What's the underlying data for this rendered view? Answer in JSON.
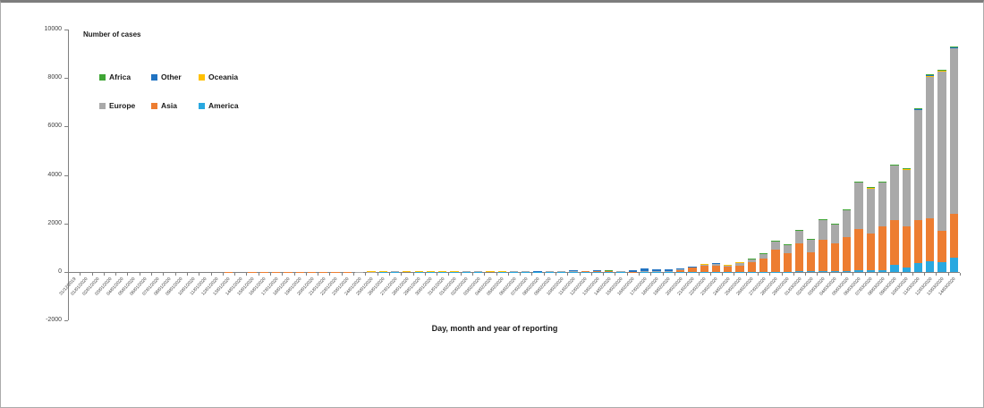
{
  "titles": {
    "y_axis_title": "Number of cases",
    "x_axis_title": "Day, month and year of reporting"
  },
  "legend": {
    "rows": [
      [
        {
          "label": "Africa",
          "color": "#3FA535"
        },
        {
          "label": "Other",
          "color": "#2173C2"
        },
        {
          "label": "Oceania",
          "color": "#FFC000"
        }
      ],
      [
        {
          "label": "Europe",
          "color": "#A9A9A9"
        },
        {
          "label": "Asia",
          "color": "#ED7D31"
        },
        {
          "label": "America",
          "color": "#29A8E0"
        }
      ]
    ]
  },
  "chart_data": {
    "type": "bar",
    "stacked": true,
    "stack_order": "bottom_to_top",
    "title": "Number of cases",
    "xlabel": "Day, month and year of reporting",
    "ylabel": "Number of cases",
    "ylim": [
      -2000,
      10000
    ],
    "y_ticks": [
      10000,
      8000,
      6000,
      4000,
      2000,
      0,
      -2000
    ],
    "grid": false,
    "legend_position": "top-left-inside",
    "categories": [
      "31/12/2019",
      "01/01/2020",
      "02/01/2020",
      "03/01/2020",
      "04/01/2020",
      "05/01/2020",
      "06/01/2020",
      "07/01/2020",
      "08/01/2020",
      "09/01/2020",
      "10/01/2020",
      "11/01/2020",
      "12/01/2020",
      "13/01/2020",
      "14/01/2020",
      "15/01/2020",
      "16/01/2020",
      "17/01/2020",
      "18/01/2020",
      "19/01/2020",
      "20/01/2020",
      "21/01/2020",
      "22/01/2020",
      "23/01/2020",
      "24/01/2020",
      "25/01/2020",
      "26/01/2020",
      "27/01/2020",
      "28/01/2020",
      "29/01/2020",
      "30/01/2020",
      "31/01/2020",
      "01/02/2020",
      "02/02/2020",
      "03/02/2020",
      "04/02/2020",
      "05/02/2020",
      "06/02/2020",
      "07/02/2020",
      "08/02/2020",
      "09/02/2020",
      "10/02/2020",
      "11/02/2020",
      "12/02/2020",
      "13/02/2020",
      "14/02/2020",
      "15/02/2020",
      "16/02/2020",
      "17/02/2020",
      "18/02/2020",
      "19/02/2020",
      "20/02/2020",
      "21/02/2020",
      "22/02/2020",
      "23/02/2020",
      "24/02/2020",
      "25/02/2020",
      "26/02/2020",
      "27/02/2020",
      "28/02/2020",
      "29/02/2020",
      "01/03/2020",
      "02/03/2020",
      "03/03/2020",
      "04/03/2020",
      "05/03/2020",
      "06/03/2020",
      "07/03/2020",
      "08/03/2020",
      "09/03/2020",
      "10/03/2020",
      "11/03/2020",
      "12/03/2020",
      "13/03/2020",
      "14/03/2020"
    ],
    "series": [
      {
        "name": "America",
        "color": "#29A8E0",
        "values": [
          0,
          0,
          0,
          0,
          0,
          0,
          0,
          0,
          0,
          0,
          0,
          0,
          0,
          0,
          0,
          0,
          0,
          0,
          0,
          0,
          1,
          1,
          0,
          1,
          0,
          0,
          4,
          2,
          0,
          2,
          2,
          2,
          2,
          3,
          1,
          0,
          2,
          2,
          3,
          1,
          1,
          2,
          1,
          2,
          2,
          1,
          2,
          2,
          1,
          1,
          2,
          4,
          5,
          5,
          5,
          8,
          8,
          12,
          14,
          15,
          15,
          28,
          20,
          30,
          35,
          48,
          62,
          75,
          82,
          300,
          185,
          370,
          450,
          410,
          600
        ]
      },
      {
        "name": "Asia",
        "color": "#ED7D31",
        "values": [
          0,
          0,
          0,
          0,
          0,
          0,
          0,
          0,
          0,
          0,
          0,
          0,
          0,
          1,
          0,
          1,
          1,
          3,
          2,
          3,
          5,
          7,
          12,
          11,
          12,
          15,
          20,
          20,
          25,
          30,
          33,
          40,
          38,
          42,
          28,
          36,
          42,
          38,
          42,
          36,
          34,
          38,
          35,
          40,
          48,
          55,
          45,
          8,
          38,
          35,
          42,
          108,
          200,
          255,
          270,
          200,
          250,
          400,
          530,
          900,
          750,
          1150,
          800,
          1300,
          1150,
          1400,
          1720,
          1520,
          1810,
          1830,
          1700,
          1760,
          1750,
          1300,
          1790
        ]
      },
      {
        "name": "Europe",
        "color": "#A9A9A9",
        "values": [
          0,
          0,
          0,
          0,
          0,
          0,
          0,
          0,
          0,
          0,
          0,
          0,
          0,
          0,
          0,
          0,
          0,
          0,
          0,
          0,
          0,
          0,
          0,
          0,
          3,
          3,
          0,
          3,
          5,
          4,
          5,
          7,
          6,
          5,
          3,
          4,
          5,
          5,
          7,
          6,
          5,
          5,
          2,
          0,
          0,
          2,
          5,
          0,
          2,
          1,
          2,
          8,
          24,
          70,
          70,
          100,
          140,
          152,
          230,
          380,
          375,
          555,
          535,
          830,
          815,
          1120,
          1940,
          1880,
          1810,
          2290,
          2350,
          4560,
          5850,
          6550,
          6820
        ]
      },
      {
        "name": "Oceania",
        "color": "#FFC000",
        "values": [
          0,
          0,
          0,
          0,
          0,
          0,
          0,
          0,
          0,
          0,
          0,
          0,
          0,
          0,
          0,
          0,
          0,
          0,
          0,
          0,
          0,
          0,
          0,
          0,
          0,
          4,
          4,
          0,
          2,
          2,
          2,
          3,
          2,
          0,
          0,
          2,
          1,
          0,
          0,
          0,
          0,
          0,
          0,
          0,
          0,
          0,
          0,
          0,
          0,
          0,
          0,
          0,
          1,
          5,
          0,
          2,
          2,
          3,
          3,
          2,
          8,
          3,
          2,
          6,
          6,
          8,
          10,
          10,
          12,
          10,
          25,
          35,
          55,
          70,
          55
        ]
      },
      {
        "name": "Other",
        "color": "#2173C2",
        "values": [
          0,
          0,
          0,
          0,
          0,
          0,
          0,
          0,
          0,
          0,
          0,
          0,
          0,
          0,
          0,
          0,
          0,
          0,
          0,
          0,
          0,
          0,
          0,
          0,
          0,
          0,
          0,
          0,
          0,
          0,
          0,
          0,
          0,
          0,
          0,
          0,
          0,
          0,
          0,
          3,
          0,
          0,
          40,
          0,
          6,
          0,
          0,
          70,
          99,
          88,
          79,
          30,
          5,
          0,
          15,
          0,
          0,
          0,
          0,
          0,
          0,
          0,
          0,
          0,
          0,
          0,
          2,
          0,
          0,
          2,
          5,
          5,
          5,
          0,
          5
        ]
      },
      {
        "name": "Africa",
        "color": "#3FA535",
        "values": [
          0,
          0,
          0,
          0,
          0,
          0,
          0,
          0,
          0,
          0,
          0,
          0,
          0,
          0,
          0,
          0,
          0,
          0,
          0,
          0,
          0,
          0,
          0,
          0,
          0,
          0,
          0,
          0,
          0,
          0,
          0,
          0,
          0,
          0,
          0,
          0,
          0,
          0,
          0,
          0,
          0,
          0,
          0,
          0,
          0,
          2,
          0,
          0,
          0,
          0,
          0,
          0,
          0,
          0,
          0,
          0,
          0,
          3,
          3,
          3,
          2,
          4,
          3,
          4,
          4,
          4,
          6,
          5,
          6,
          8,
          15,
          20,
          40,
          20,
          30
        ]
      }
    ]
  }
}
